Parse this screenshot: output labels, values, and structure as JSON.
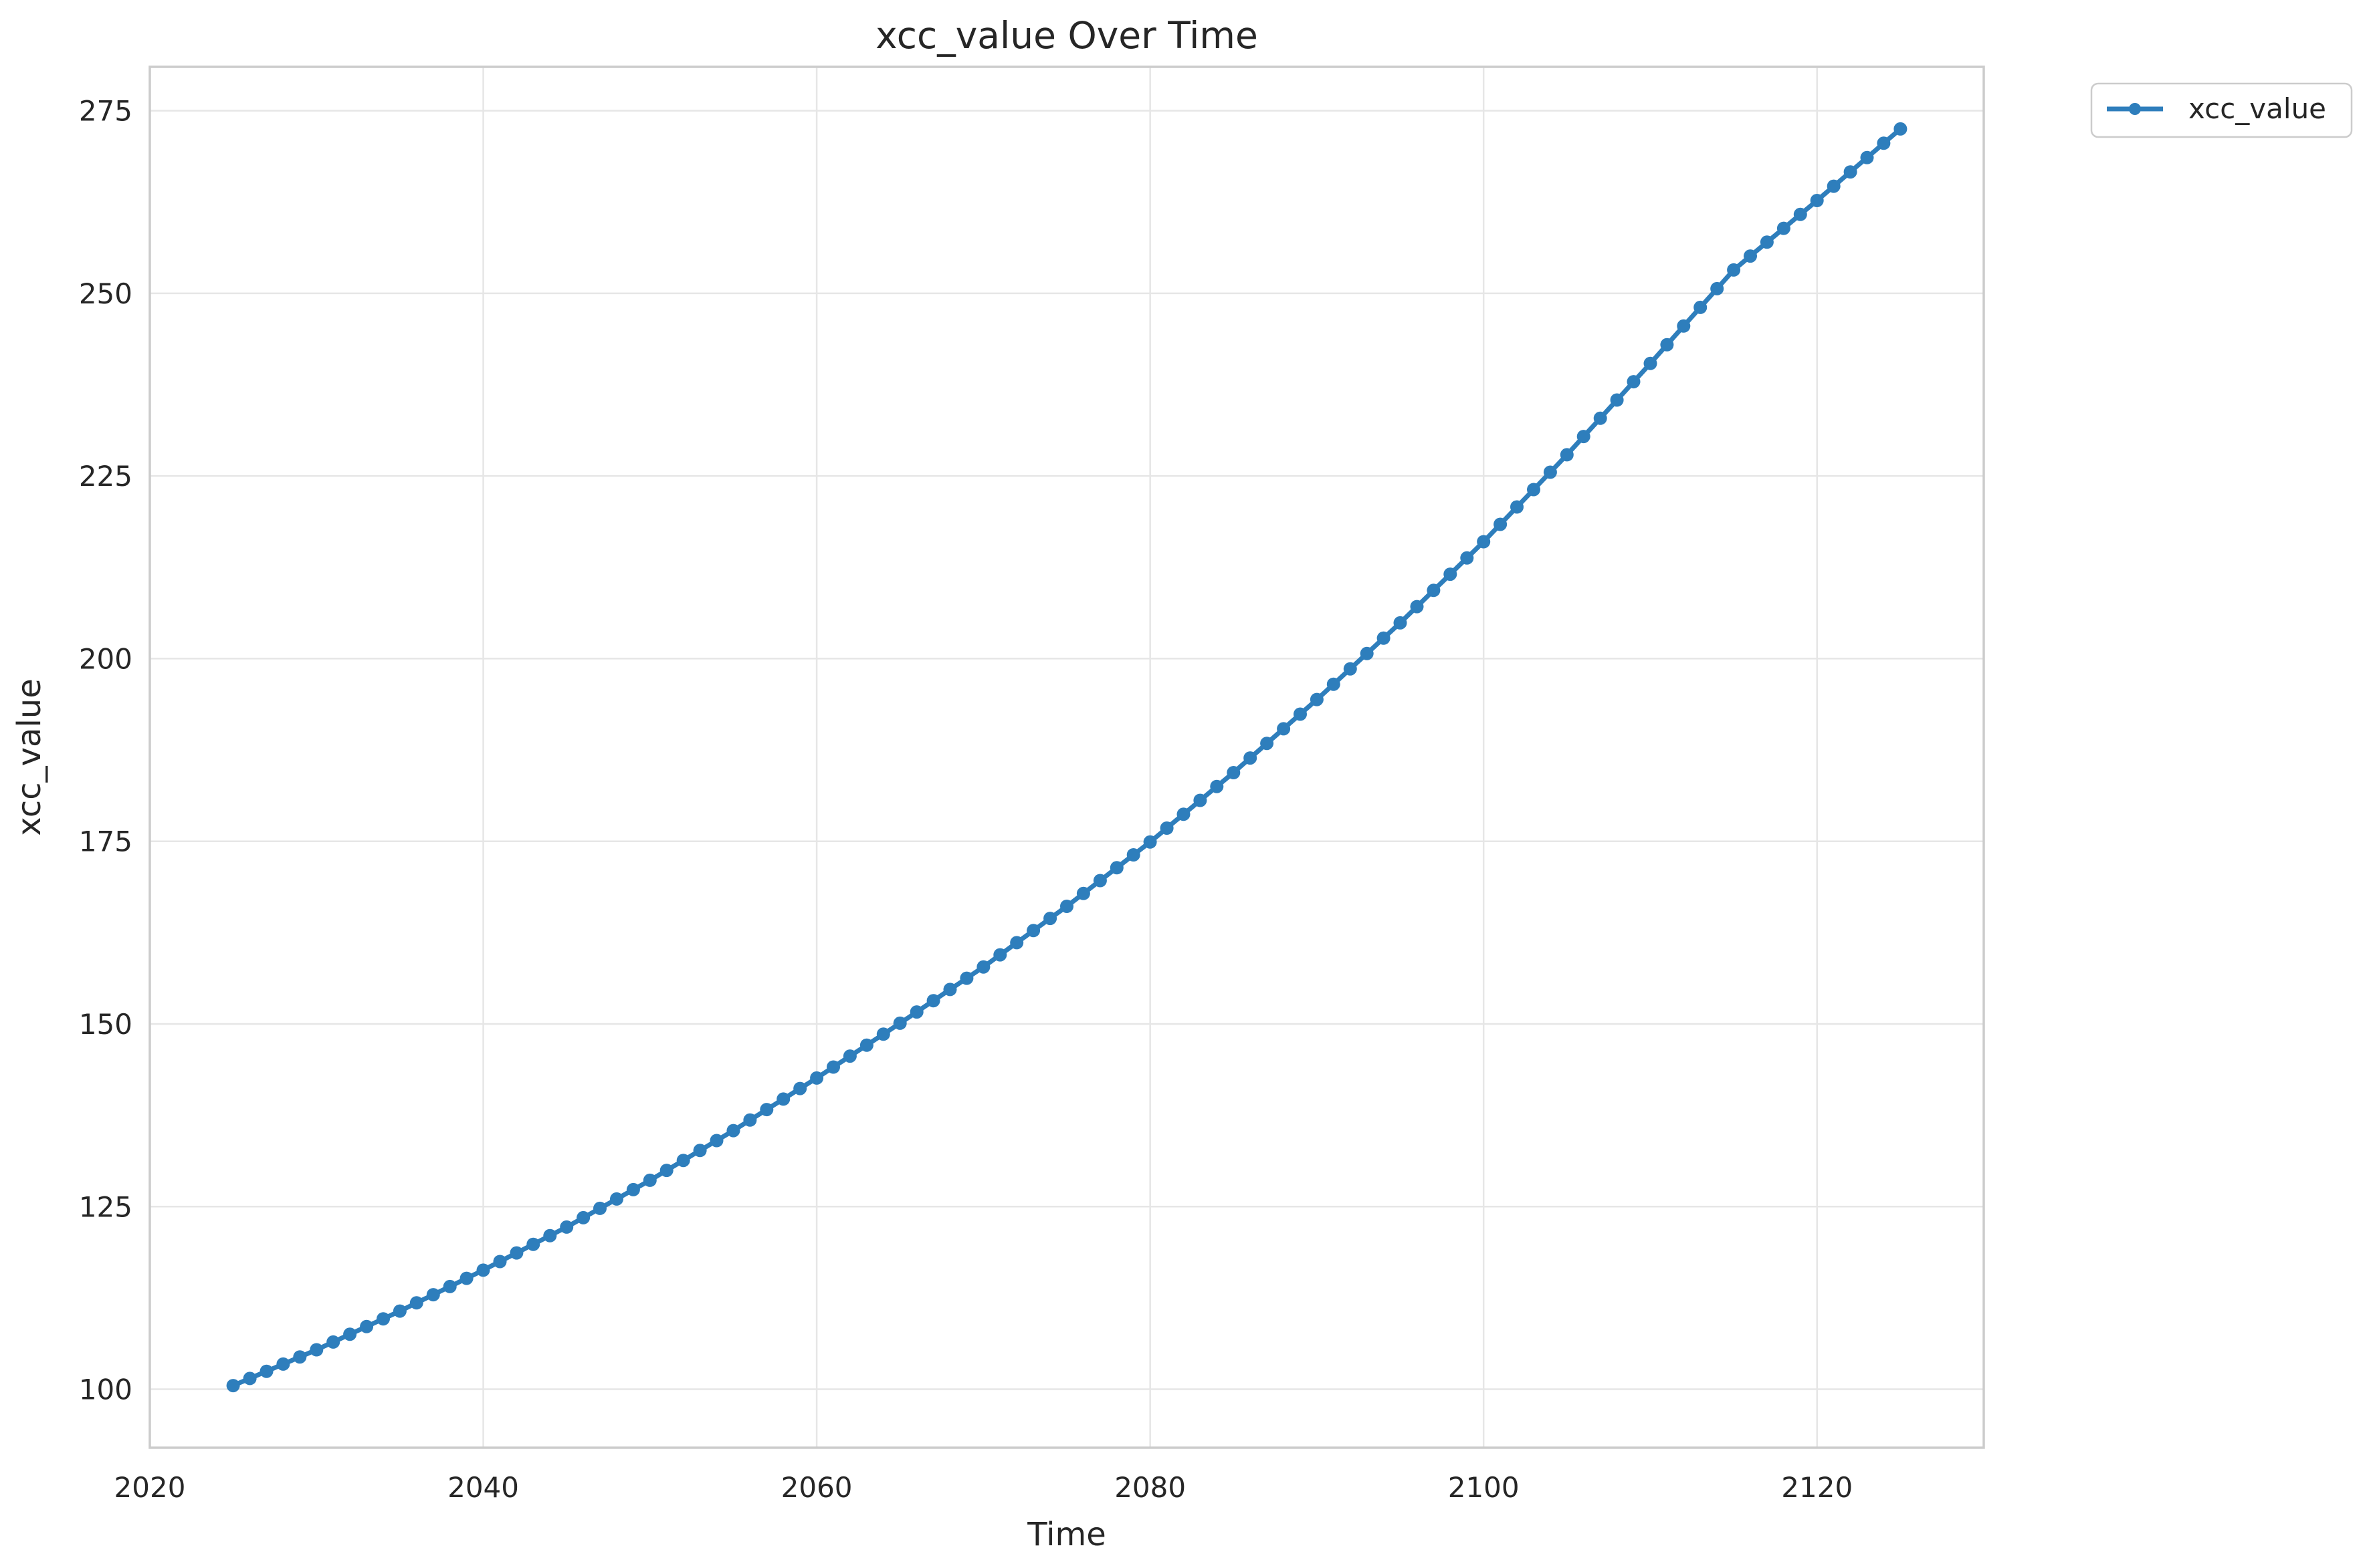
{
  "chart_data": {
    "type": "line",
    "title": "xcc_value Over Time",
    "xlabel": "Time",
    "ylabel": "xcc_value",
    "xlim": [
      2020,
      2130
    ],
    "ylim": [
      92,
      281
    ],
    "x_ticks": [
      2020,
      2040,
      2060,
      2080,
      2100,
      2120
    ],
    "y_ticks": [
      100,
      125,
      150,
      175,
      200,
      225,
      250,
      275
    ],
    "x_tick_labels": [
      "2020",
      "2040",
      "2060",
      "2080",
      "2100",
      "2120"
    ],
    "y_tick_labels": [
      "100",
      "125",
      "150",
      "175",
      "200",
      "225",
      "250",
      "275"
    ],
    "grid": true,
    "legend": {
      "position": "outside-top-right"
    },
    "series": [
      {
        "name": "xcc_value",
        "color": "#2e7ebc",
        "marker": "circle",
        "x": [
          2025,
          2030,
          2035,
          2040,
          2045,
          2050,
          2055,
          2060,
          2065,
          2070,
          2075,
          2080,
          2085,
          2090,
          2095,
          2100,
          2105,
          2110,
          2115,
          2120,
          2125
        ],
        "y": [
          100.5,
          105.4,
          110.7,
          116.3,
          122.2,
          128.6,
          135.4,
          142.6,
          150.1,
          157.8,
          166.1,
          174.9,
          184.4,
          194.4,
          204.9,
          216.0,
          227.9,
          240.4,
          253.2,
          262.7,
          272.5
        ]
      }
    ]
  }
}
